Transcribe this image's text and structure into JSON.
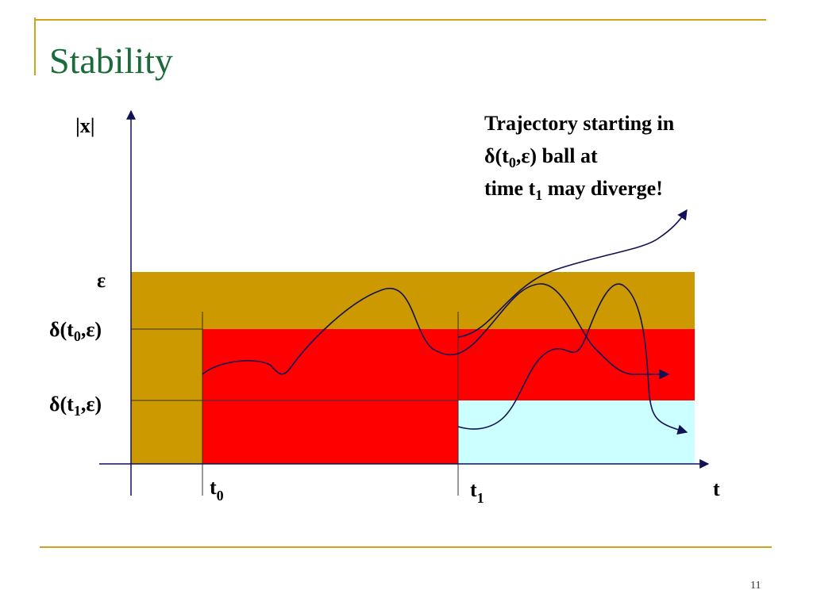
{
  "header": {
    "title": "Stability"
  },
  "axes": {
    "y_label": "|x|",
    "x_label": "t"
  },
  "levels": {
    "epsilon": "ε",
    "delta_t0": {
      "base": "δ(t",
      "sub": "0",
      "rest": ",ε)"
    },
    "delta_t1": {
      "base": "δ(t",
      "sub": "1",
      "rest": ",ε)"
    }
  },
  "times": {
    "t0": {
      "base": "t",
      "sub": "0"
    },
    "t1": {
      "base": "t",
      "sub": "1"
    }
  },
  "annotation": {
    "line1": "Trajectory starting in",
    "line2": {
      "base": "δ(t",
      "sub": "0",
      "rest": ",ε) ball at"
    },
    "line3": {
      "base": "time t",
      "sub": "1",
      "rest": " may diverge!"
    }
  },
  "footer": {
    "page_number": "11"
  }
}
